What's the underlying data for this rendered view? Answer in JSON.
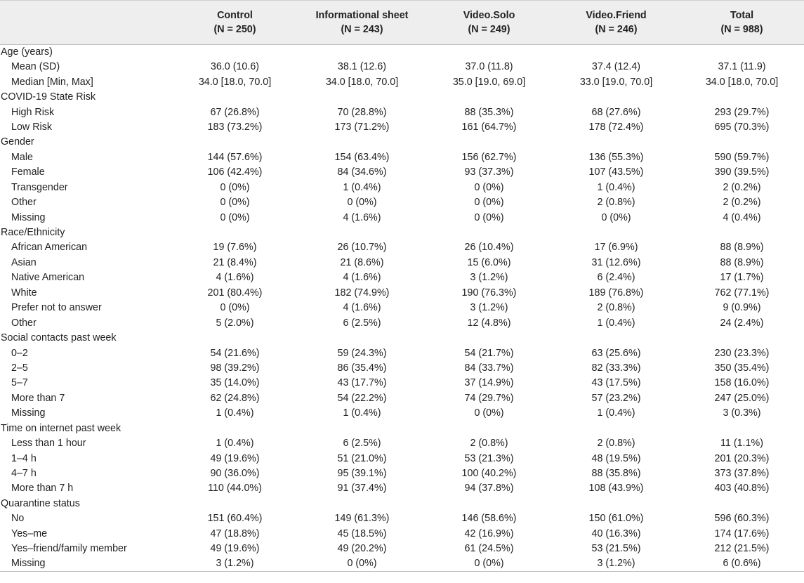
{
  "header": {
    "columns": [
      {
        "name": "Control",
        "n": "(N = 250)"
      },
      {
        "name": "Informational sheet",
        "n": "(N = 243)"
      },
      {
        "name": "Video.Solo",
        "n": "(N = 249)"
      },
      {
        "name": "Video.Friend",
        "n": "(N = 246)"
      },
      {
        "name": "Total",
        "n": "(N = 988)"
      }
    ]
  },
  "sections": [
    {
      "title": "Age (years)",
      "rows": [
        {
          "label": "Mean (SD)",
          "values": [
            "36.0 (10.6)",
            "38.1 (12.6)",
            "37.0 (11.8)",
            "37.4 (12.4)",
            "37.1 (11.9)"
          ]
        },
        {
          "label": "Median [Min, Max]",
          "values": [
            "34.0 [18.0, 70.0]",
            "34.0 [18.0, 70.0]",
            "35.0 [19.0, 69.0]",
            "33.0 [19.0, 70.0]",
            "34.0 [18.0, 70.0]"
          ]
        }
      ]
    },
    {
      "title": "COVID-19 State Risk",
      "rows": [
        {
          "label": "High Risk",
          "values": [
            "67 (26.8%)",
            "70 (28.8%)",
            "88 (35.3%)",
            "68 (27.6%)",
            "293 (29.7%)"
          ]
        },
        {
          "label": "Low Risk",
          "values": [
            "183 (73.2%)",
            "173 (71.2%)",
            "161 (64.7%)",
            "178 (72.4%)",
            "695 (70.3%)"
          ]
        }
      ]
    },
    {
      "title": "Gender",
      "rows": [
        {
          "label": "Male",
          "values": [
            "144 (57.6%)",
            "154 (63.4%)",
            "156 (62.7%)",
            "136 (55.3%)",
            "590 (59.7%)"
          ]
        },
        {
          "label": "Female",
          "values": [
            "106 (42.4%)",
            "84 (34.6%)",
            "93 (37.3%)",
            "107 (43.5%)",
            "390 (39.5%)"
          ]
        },
        {
          "label": "Transgender",
          "values": [
            "0 (0%)",
            "1 (0.4%)",
            "0 (0%)",
            "1 (0.4%)",
            "2 (0.2%)"
          ]
        },
        {
          "label": "Other",
          "values": [
            "0 (0%)",
            "0 (0%)",
            "0 (0%)",
            "2 (0.8%)",
            "2 (0.2%)"
          ]
        },
        {
          "label": "Missing",
          "values": [
            "0 (0%)",
            "4 (1.6%)",
            "0 (0%)",
            "0 (0%)",
            "4 (0.4%)"
          ]
        }
      ]
    },
    {
      "title": "Race/Ethnicity",
      "rows": [
        {
          "label": "African American",
          "values": [
            "19 (7.6%)",
            "26 (10.7%)",
            "26 (10.4%)",
            "17 (6.9%)",
            "88 (8.9%)"
          ]
        },
        {
          "label": "Asian",
          "values": [
            "21 (8.4%)",
            "21 (8.6%)",
            "15 (6.0%)",
            "31 (12.6%)",
            "88 (8.9%)"
          ]
        },
        {
          "label": "Native American",
          "values": [
            "4 (1.6%)",
            "4 (1.6%)",
            "3 (1.2%)",
            "6 (2.4%)",
            "17 (1.7%)"
          ]
        },
        {
          "label": "White",
          "values": [
            "201 (80.4%)",
            "182 (74.9%)",
            "190 (76.3%)",
            "189 (76.8%)",
            "762 (77.1%)"
          ]
        },
        {
          "label": "Prefer not to answer",
          "values": [
            "0 (0%)",
            "4 (1.6%)",
            "3 (1.2%)",
            "2 (0.8%)",
            "9 (0.9%)"
          ]
        },
        {
          "label": "Other",
          "values": [
            "5 (2.0%)",
            "6 (2.5%)",
            "12 (4.8%)",
            "1 (0.4%)",
            "24 (2.4%)"
          ]
        }
      ]
    },
    {
      "title": "Social contacts past week",
      "rows": [
        {
          "label": "0–2",
          "values": [
            "54 (21.6%)",
            "59 (24.3%)",
            "54 (21.7%)",
            "63 (25.6%)",
            "230 (23.3%)"
          ]
        },
        {
          "label": "2–5",
          "values": [
            "98 (39.2%)",
            "86 (35.4%)",
            "84 (33.7%)",
            "82 (33.3%)",
            "350 (35.4%)"
          ]
        },
        {
          "label": "5–7",
          "values": [
            "35 (14.0%)",
            "43 (17.7%)",
            "37 (14.9%)",
            "43 (17.5%)",
            "158 (16.0%)"
          ]
        },
        {
          "label": "More than 7",
          "values": [
            "62 (24.8%)",
            "54 (22.2%)",
            "74 (29.7%)",
            "57 (23.2%)",
            "247 (25.0%)"
          ]
        },
        {
          "label": "Missing",
          "values": [
            "1 (0.4%)",
            "1 (0.4%)",
            "0 (0%)",
            "1 (0.4%)",
            "3 (0.3%)"
          ]
        }
      ]
    },
    {
      "title": "Time on internet past week",
      "rows": [
        {
          "label": "Less than 1 hour",
          "values": [
            "1 (0.4%)",
            "6 (2.5%)",
            "2 (0.8%)",
            "2 (0.8%)",
            "11 (1.1%)"
          ]
        },
        {
          "label": "1–4 h",
          "values": [
            "49 (19.6%)",
            "51 (21.0%)",
            "53 (21.3%)",
            "48 (19.5%)",
            "201 (20.3%)"
          ]
        },
        {
          "label": "4–7 h",
          "values": [
            "90 (36.0%)",
            "95 (39.1%)",
            "100 (40.2%)",
            "88 (35.8%)",
            "373 (37.8%)"
          ]
        },
        {
          "label": "More than 7 h",
          "values": [
            "110 (44.0%)",
            "91 (37.4%)",
            "94 (37.8%)",
            "108 (43.9%)",
            "403 (40.8%)"
          ]
        }
      ]
    },
    {
      "title": "Quarantine status",
      "rows": [
        {
          "label": "No",
          "values": [
            "151 (60.4%)",
            "149 (61.3%)",
            "146 (58.6%)",
            "150 (61.0%)",
            "596 (60.3%)"
          ]
        },
        {
          "label": "Yes–me",
          "values": [
            "47 (18.8%)",
            "45 (18.5%)",
            "42 (16.9%)",
            "40 (16.3%)",
            "174 (17.6%)"
          ]
        },
        {
          "label": "Yes–friend/family member",
          "values": [
            "49 (19.6%)",
            "49 (20.2%)",
            "61 (24.5%)",
            "53 (21.5%)",
            "212 (21.5%)"
          ]
        },
        {
          "label": "Missing",
          "values": [
            "3 (1.2%)",
            "0 (0%)",
            "0 (0%)",
            "3 (1.2%)",
            "6 (0.6%)"
          ]
        }
      ]
    }
  ]
}
